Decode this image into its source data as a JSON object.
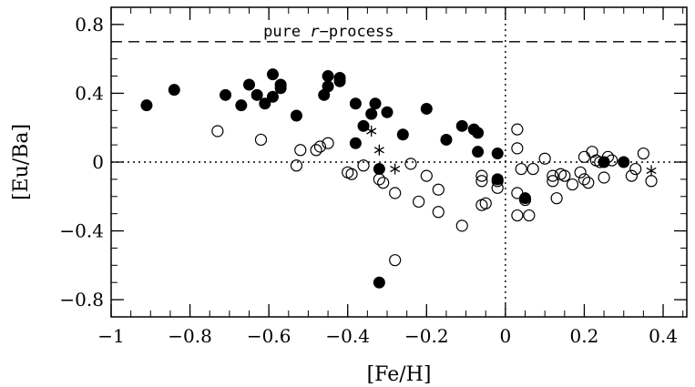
{
  "chart_data": {
    "type": "scatter",
    "xlabel": "[Fe/H]",
    "ylabel": "[Eu/Ba]",
    "xlim": [
      -1.0,
      0.46
    ],
    "ylim": [
      -0.9,
      0.9
    ],
    "xticks": [
      -1,
      -0.8,
      -0.6,
      -0.4,
      -0.2,
      0,
      0.2,
      0.4
    ],
    "xtick_labels": [
      "−1",
      "−0.8",
      "−0.6",
      "−0.4",
      "−0.2",
      "0",
      "0.2",
      "0.4"
    ],
    "yticks": [
      -0.8,
      -0.4,
      0,
      0.4,
      0.8
    ],
    "ytick_labels": [
      "−0.8",
      "−0.4",
      "0",
      "0.4",
      "0.8"
    ],
    "minor_x_step": 0.05,
    "minor_y_step": 0.1,
    "grid": false,
    "reference_lines": [
      {
        "orientation": "horizontal",
        "value": 0.7,
        "style": "dashed",
        "label": "pure r−process"
      },
      {
        "orientation": "horizontal",
        "value": 0.0,
        "style": "dotted"
      },
      {
        "orientation": "vertical",
        "value": 0.0,
        "style": "dotted"
      }
    ],
    "annotation": {
      "prefix": "pure ",
      "italic": "r",
      "suffix": "−process",
      "x": -0.6,
      "y": 0.7
    },
    "series": [
      {
        "marker": "filled-circle",
        "points": [
          [
            -0.91,
            0.33
          ],
          [
            -0.84,
            0.42
          ],
          [
            -0.71,
            0.39
          ],
          [
            -0.67,
            0.33
          ],
          [
            -0.65,
            0.45
          ],
          [
            -0.63,
            0.39
          ],
          [
            -0.61,
            0.34
          ],
          [
            -0.59,
            0.51
          ],
          [
            -0.59,
            0.38
          ],
          [
            -0.57,
            0.45
          ],
          [
            -0.57,
            0.43
          ],
          [
            -0.53,
            0.27
          ],
          [
            -0.46,
            0.39
          ],
          [
            -0.45,
            0.5
          ],
          [
            -0.45,
            0.44
          ],
          [
            -0.42,
            0.49
          ],
          [
            -0.42,
            0.47
          ],
          [
            -0.38,
            0.34
          ],
          [
            -0.38,
            0.11
          ],
          [
            -0.36,
            0.21
          ],
          [
            -0.34,
            0.28
          ],
          [
            -0.33,
            0.34
          ],
          [
            -0.32,
            -0.04
          ],
          [
            -0.3,
            0.29
          ],
          [
            -0.26,
            0.16
          ],
          [
            -0.2,
            0.31
          ],
          [
            -0.15,
            0.13
          ],
          [
            -0.11,
            0.21
          ],
          [
            -0.08,
            0.19
          ],
          [
            -0.07,
            0.17
          ],
          [
            -0.07,
            0.06
          ],
          [
            -0.02,
            -0.1
          ],
          [
            -0.02,
            0.05
          ],
          [
            -0.32,
            -0.7
          ],
          [
            0.05,
            -0.21
          ],
          [
            0.25,
            0.0
          ],
          [
            0.3,
            0.0
          ]
        ]
      },
      {
        "marker": "open-circle",
        "points": [
          [
            -0.73,
            0.18
          ],
          [
            -0.62,
            0.13
          ],
          [
            -0.52,
            0.07
          ],
          [
            -0.53,
            -0.02
          ],
          [
            -0.48,
            0.07
          ],
          [
            -0.47,
            0.09
          ],
          [
            -0.45,
            0.11
          ],
          [
            -0.4,
            -0.06
          ],
          [
            -0.39,
            -0.07
          ],
          [
            -0.36,
            -0.02
          ],
          [
            -0.32,
            -0.1
          ],
          [
            -0.31,
            -0.12
          ],
          [
            -0.28,
            -0.18
          ],
          [
            -0.28,
            -0.57
          ],
          [
            -0.24,
            -0.01
          ],
          [
            -0.22,
            -0.23
          ],
          [
            -0.2,
            -0.08
          ],
          [
            -0.17,
            -0.16
          ],
          [
            -0.17,
            -0.29
          ],
          [
            -0.11,
            -0.37
          ],
          [
            -0.06,
            -0.08
          ],
          [
            -0.06,
            -0.11
          ],
          [
            -0.06,
            -0.25
          ],
          [
            -0.05,
            -0.24
          ],
          [
            -0.02,
            -0.15
          ],
          [
            -0.02,
            -0.11
          ],
          [
            0.03,
            0.19
          ],
          [
            0.03,
            0.08
          ],
          [
            0.03,
            -0.31
          ],
          [
            0.03,
            -0.18
          ],
          [
            0.04,
            -0.04
          ],
          [
            0.05,
            -0.22
          ],
          [
            0.06,
            -0.31
          ],
          [
            0.07,
            -0.04
          ],
          [
            0.1,
            0.02
          ],
          [
            0.12,
            -0.08
          ],
          [
            0.12,
            -0.11
          ],
          [
            0.13,
            -0.21
          ],
          [
            0.14,
            -0.07
          ],
          [
            0.15,
            -0.08
          ],
          [
            0.17,
            -0.13
          ],
          [
            0.19,
            -0.06
          ],
          [
            0.2,
            -0.1
          ],
          [
            0.21,
            -0.12
          ],
          [
            0.22,
            0.06
          ],
          [
            0.23,
            0.01
          ],
          [
            0.24,
            0.0
          ],
          [
            0.25,
            -0.09
          ],
          [
            0.26,
            0.03
          ],
          [
            0.27,
            0.01
          ],
          [
            0.32,
            -0.08
          ],
          [
            0.33,
            -0.04
          ],
          [
            0.35,
            0.05
          ],
          [
            0.37,
            -0.11
          ],
          [
            0.2,
            0.03
          ]
        ]
      },
      {
        "marker": "asterisk",
        "points": [
          [
            -0.34,
            0.18
          ],
          [
            -0.32,
            0.07
          ],
          [
            -0.28,
            -0.04
          ],
          [
            0.37,
            -0.05
          ]
        ]
      }
    ]
  }
}
